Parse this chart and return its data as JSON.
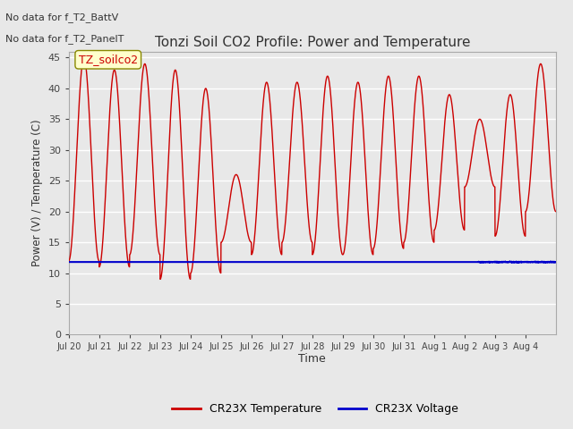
{
  "title": "Tonzi Soil CO2 Profile: Power and Temperature",
  "ylabel": "Power (V) / Temperature (C)",
  "xlabel": "Time",
  "ylim": [
    0,
    46
  ],
  "yticks": [
    0,
    5,
    10,
    15,
    20,
    25,
    30,
    35,
    40,
    45
  ],
  "background_color": "#e8e8e8",
  "plot_bg_color": "#e8e8e8",
  "grid_color": "white",
  "top_text_line1": "No data for f_T2_BattV",
  "top_text_line2": "No data for f_T2_PanelT",
  "annotation_box": "TZ_soilco2",
  "annotation_box_color": "#ffffcc",
  "annotation_box_edge": "#888800",
  "temp_color": "#cc0000",
  "voltage_color": "#0000cc",
  "legend_temp": "CR23X Temperature",
  "legend_voltage": "CR23X Voltage",
  "num_days": 16,
  "voltage_value": 11.8,
  "temp_peaks": [
    45,
    43,
    44,
    43,
    40,
    26,
    41,
    41,
    42,
    41,
    42,
    42,
    39,
    35,
    39,
    44
  ],
  "temp_troughs": [
    12,
    11,
    13,
    9,
    10,
    15,
    13,
    15,
    13,
    13,
    14,
    15,
    17,
    24,
    16,
    20
  ],
  "x_tick_labels": [
    "Jul 20",
    "Jul 21",
    "Jul 22",
    "Jul 23",
    "Jul 24",
    "Jul 25",
    "Jul 26",
    "Jul 27",
    "Jul 28",
    "Jul 29",
    "Jul 30",
    "Jul 31",
    "Aug 1",
    "Aug 2",
    "Aug 3",
    "Aug 4"
  ]
}
